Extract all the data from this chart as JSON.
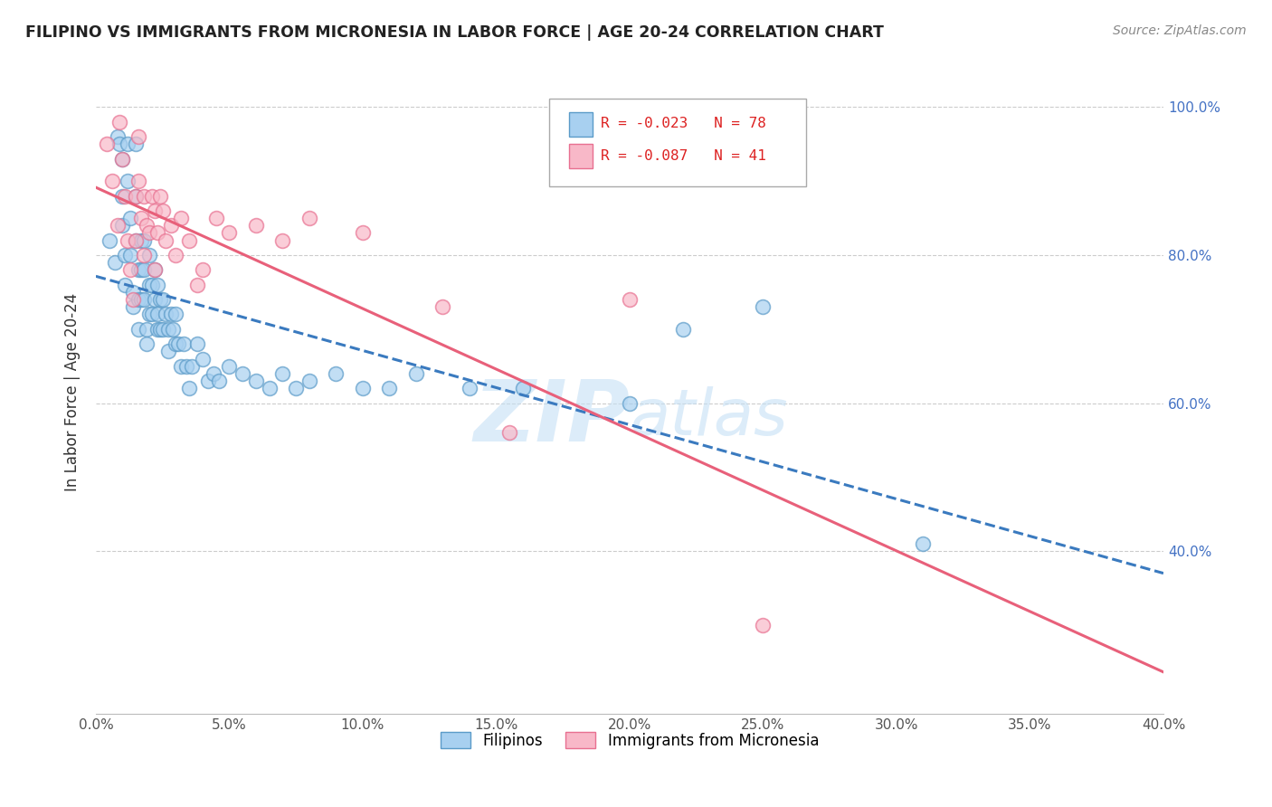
{
  "title": "FILIPINO VS IMMIGRANTS FROM MICRONESIA IN LABOR FORCE | AGE 20-24 CORRELATION CHART",
  "source": "Source: ZipAtlas.com",
  "ylabel": "In Labor Force | Age 20-24",
  "xmin": 0.0,
  "xmax": 0.4,
  "ymin": 0.18,
  "ymax": 1.05,
  "watermark_line1": "ZIP",
  "watermark_line2": "atlas",
  "r_blue": -0.023,
  "n_blue": 78,
  "r_pink": -0.087,
  "n_pink": 41,
  "legend_labels": [
    "Filipinos",
    "Immigrants from Micronesia"
  ],
  "blue_face": "#a8d0f0",
  "blue_edge": "#5b9bc8",
  "pink_face": "#f8b8c8",
  "pink_edge": "#e87090",
  "blue_line": "#3a7abf",
  "pink_line": "#e8607a",
  "yticks_right": [
    0.4,
    0.6,
    0.8,
    1.0
  ],
  "ytick_labels_right": [
    "40.0%",
    "60.0%",
    "80.0%",
    "100.0%"
  ],
  "xticks": [
    0.0,
    0.05,
    0.1,
    0.15,
    0.2,
    0.25,
    0.3,
    0.35,
    0.4
  ],
  "xtick_labels": [
    "0.0%",
    "5.0%",
    "10.0%",
    "15.0%",
    "20.0%",
    "25.0%",
    "30.0%",
    "35.0%",
    "40.0%"
  ],
  "filipino_x": [
    0.005,
    0.007,
    0.008,
    0.009,
    0.01,
    0.01,
    0.01,
    0.011,
    0.011,
    0.012,
    0.012,
    0.013,
    0.013,
    0.014,
    0.014,
    0.015,
    0.015,
    0.015,
    0.016,
    0.016,
    0.016,
    0.017,
    0.017,
    0.017,
    0.018,
    0.018,
    0.018,
    0.019,
    0.019,
    0.02,
    0.02,
    0.02,
    0.021,
    0.021,
    0.022,
    0.022,
    0.023,
    0.023,
    0.023,
    0.024,
    0.024,
    0.025,
    0.025,
    0.026,
    0.027,
    0.027,
    0.028,
    0.029,
    0.03,
    0.03,
    0.031,
    0.032,
    0.033,
    0.034,
    0.035,
    0.036,
    0.038,
    0.04,
    0.042,
    0.044,
    0.046,
    0.05,
    0.055,
    0.06,
    0.065,
    0.07,
    0.075,
    0.08,
    0.09,
    0.1,
    0.11,
    0.12,
    0.14,
    0.16,
    0.2,
    0.22,
    0.25,
    0.31
  ],
  "filipino_y": [
    0.82,
    0.79,
    0.96,
    0.95,
    0.93,
    0.88,
    0.84,
    0.8,
    0.76,
    0.95,
    0.9,
    0.85,
    0.8,
    0.75,
    0.73,
    0.95,
    0.88,
    0.82,
    0.78,
    0.74,
    0.7,
    0.82,
    0.78,
    0.74,
    0.82,
    0.78,
    0.74,
    0.7,
    0.68,
    0.8,
    0.76,
    0.72,
    0.76,
    0.72,
    0.78,
    0.74,
    0.76,
    0.72,
    0.7,
    0.74,
    0.7,
    0.74,
    0.7,
    0.72,
    0.7,
    0.67,
    0.72,
    0.7,
    0.72,
    0.68,
    0.68,
    0.65,
    0.68,
    0.65,
    0.62,
    0.65,
    0.68,
    0.66,
    0.63,
    0.64,
    0.63,
    0.65,
    0.64,
    0.63,
    0.62,
    0.64,
    0.62,
    0.63,
    0.64,
    0.62,
    0.62,
    0.64,
    0.62,
    0.62,
    0.6,
    0.7,
    0.73,
    0.41
  ],
  "micronesia_x": [
    0.004,
    0.006,
    0.008,
    0.009,
    0.01,
    0.011,
    0.012,
    0.013,
    0.014,
    0.015,
    0.015,
    0.016,
    0.016,
    0.017,
    0.018,
    0.018,
    0.019,
    0.02,
    0.021,
    0.022,
    0.022,
    0.023,
    0.024,
    0.025,
    0.026,
    0.028,
    0.03,
    0.032,
    0.035,
    0.038,
    0.04,
    0.045,
    0.05,
    0.06,
    0.07,
    0.08,
    0.1,
    0.13,
    0.155,
    0.2,
    0.25
  ],
  "micronesia_y": [
    0.95,
    0.9,
    0.84,
    0.98,
    0.93,
    0.88,
    0.82,
    0.78,
    0.74,
    0.88,
    0.82,
    0.96,
    0.9,
    0.85,
    0.8,
    0.88,
    0.84,
    0.83,
    0.88,
    0.86,
    0.78,
    0.83,
    0.88,
    0.86,
    0.82,
    0.84,
    0.8,
    0.85,
    0.82,
    0.76,
    0.78,
    0.85,
    0.83,
    0.84,
    0.82,
    0.85,
    0.83,
    0.73,
    0.56,
    0.74,
    0.3
  ]
}
